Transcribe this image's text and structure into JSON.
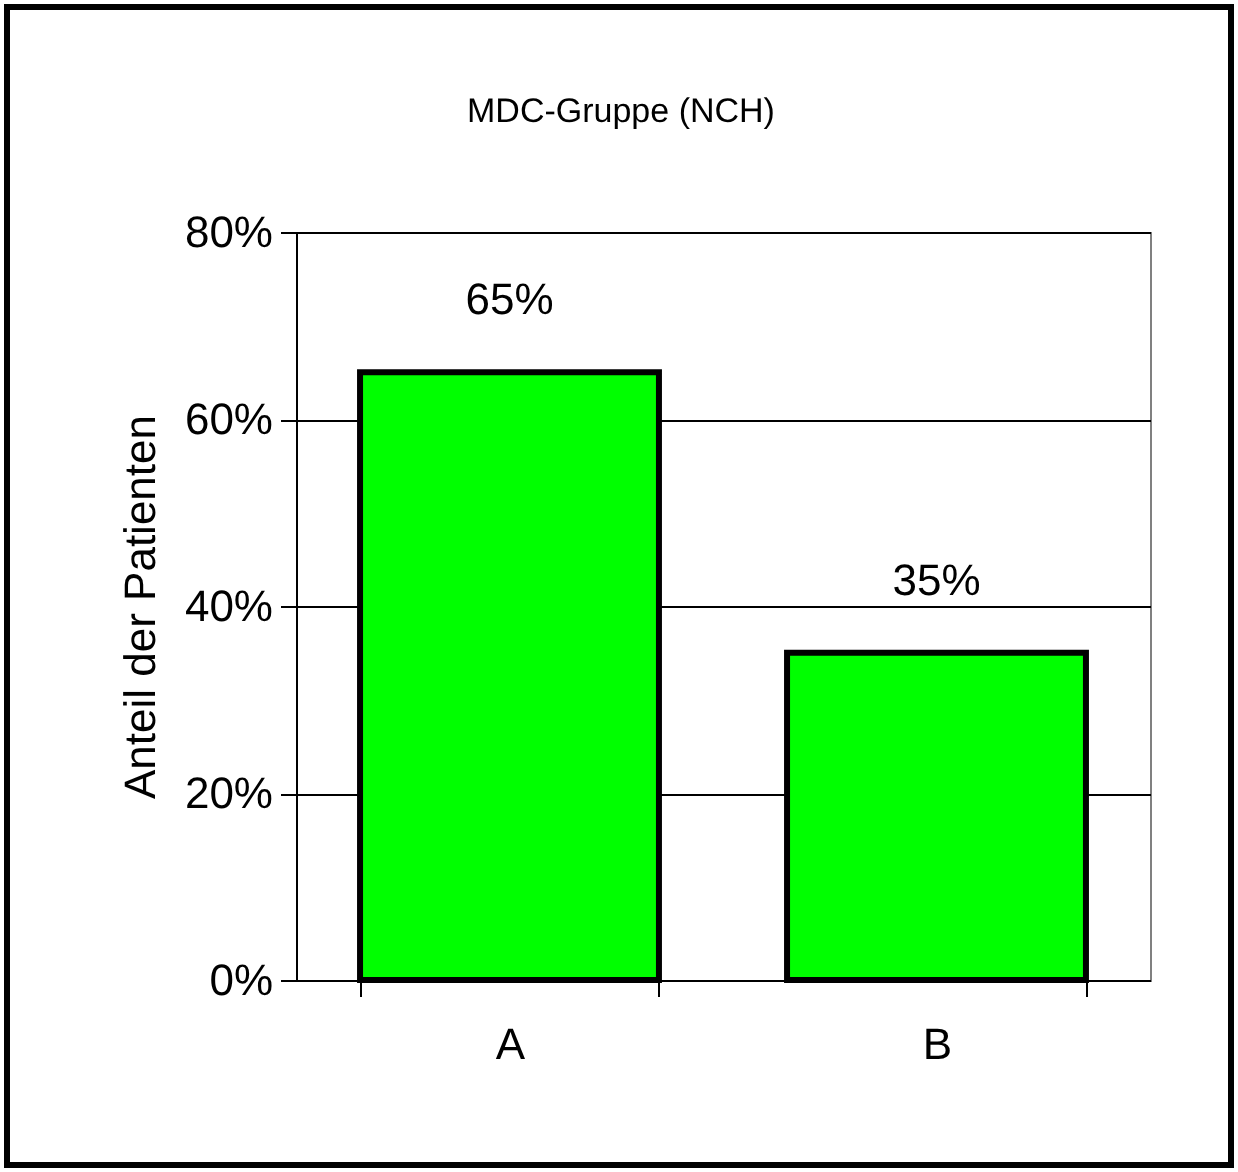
{
  "chart_data": {
    "type": "bar",
    "title": "MDC-Gruppe (NCH)",
    "ylabel": "Anteil der Patienten",
    "categories": [
      "A",
      "B"
    ],
    "values": [
      65,
      35
    ],
    "color": "#00ff00",
    "value_labels": [
      "65%",
      "35%"
    ],
    "ylim": [
      0,
      80
    ],
    "yticks": [
      {
        "value": 0,
        "label": "0%"
      },
      {
        "value": 20,
        "label": "20%"
      },
      {
        "value": 40,
        "label": "40%"
      },
      {
        "value": 60,
        "label": "60%"
      },
      {
        "value": 80,
        "label": "80%"
      }
    ],
    "grid": "y"
  }
}
